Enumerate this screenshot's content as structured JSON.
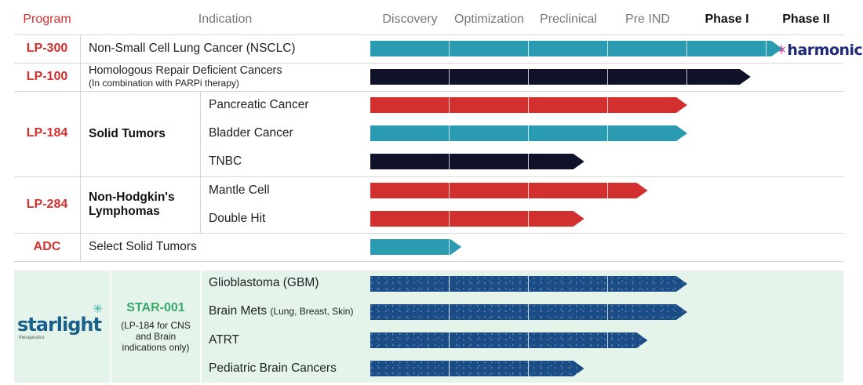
{
  "header": {
    "program": "Program",
    "indication": "Indication",
    "phases": [
      "Discovery",
      "Optimization",
      "Preclinical",
      "Pre IND",
      "Phase I",
      "Phase II"
    ]
  },
  "colors": {
    "teal": "#2a9bb0",
    "navy": "#0f1228",
    "red": "#d2302e",
    "starry_blue": "#1a4c86",
    "program_red": "#d2302e",
    "star_green": "#3aa86b"
  },
  "rows": [
    {
      "program": "LP-300",
      "indication": "Non-Small Cell Lung Cancer (NSCLC)",
      "color": "teal",
      "progress_phases": 5.2,
      "partner": "harmonic"
    },
    {
      "program": "LP-100",
      "indication": "Homologous Repair Deficient Cancers",
      "note": "(In combination with PARPi therapy)",
      "color": "navy",
      "progress_phases": 4.8
    },
    {
      "program": "LP-184",
      "group": "Solid Tumors",
      "indications": [
        {
          "name": "Pancreatic Cancer",
          "color": "red",
          "progress_phases": 4.0
        },
        {
          "name": "Bladder Cancer",
          "color": "teal",
          "progress_phases": 4.0
        },
        {
          "name": "TNBC",
          "color": "navy",
          "progress_phases": 2.7
        }
      ]
    },
    {
      "program": "LP-284",
      "group_line1": "Non-Hodgkin's",
      "group_line2": "Lymphomas",
      "indications": [
        {
          "name": "Mantle Cell",
          "color": "red",
          "progress_phases": 3.5
        },
        {
          "name": "Double Hit",
          "color": "red",
          "progress_phases": 2.7
        }
      ]
    },
    {
      "program": "ADC",
      "indication": "Select Solid Tumors",
      "color": "teal",
      "progress_phases": 1.15
    }
  ],
  "starlight": {
    "logo": "starlight",
    "logo_sub": "therapeutics",
    "program": "STAR-001",
    "note_line1": "(LP-184 for CNS",
    "note_line2": "and Brain",
    "note_line3": "indications only)",
    "indications": [
      {
        "name": "Glioblastoma (GBM)",
        "detail": "",
        "progress_phases": 4.0
      },
      {
        "name": "Brain Mets",
        "detail": "(Lung, Breast, Skin)",
        "progress_phases": 4.0
      },
      {
        "name": "ATRT",
        "detail": "",
        "progress_phases": 3.5
      },
      {
        "name": "Pediatric Brain Cancers",
        "detail": "",
        "progress_phases": 2.7
      }
    ]
  }
}
